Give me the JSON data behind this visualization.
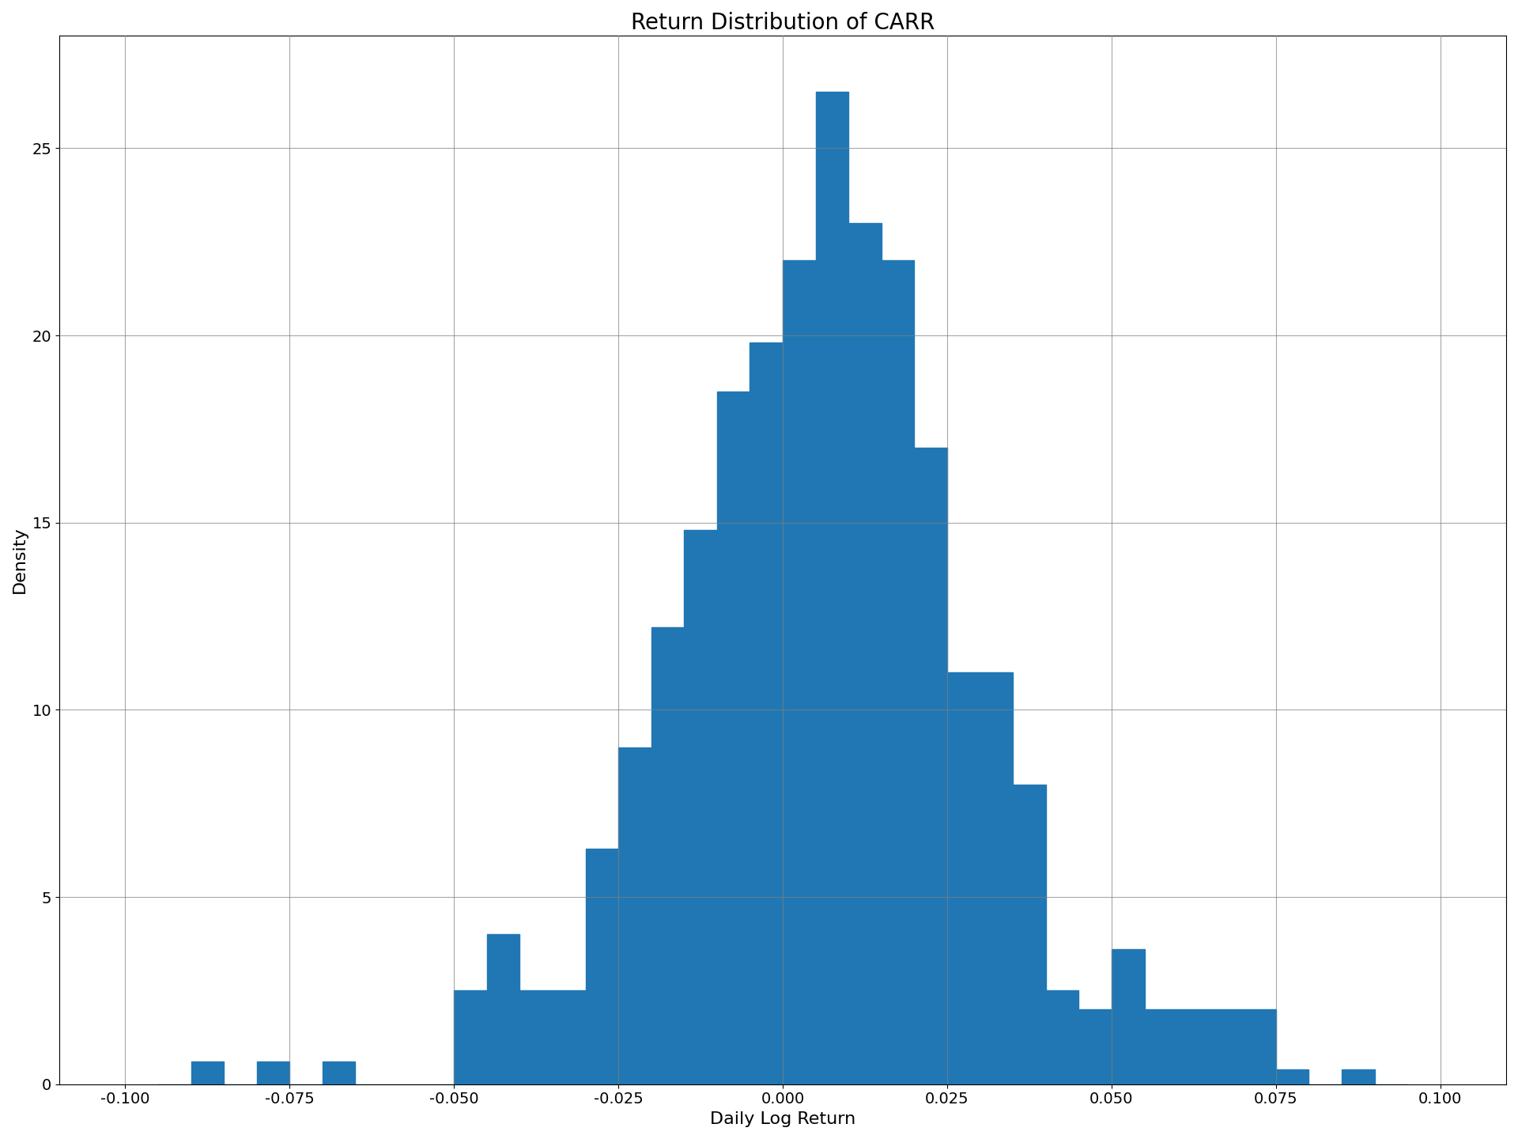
{
  "title": "Return Distribution of CARR",
  "xlabel": "Daily Log Return",
  "ylabel": "Density",
  "bar_color": "#2077b4",
  "xlim": [
    -0.11,
    0.11
  ],
  "ylim": [
    0,
    28
  ],
  "xticks": [
    -0.1,
    -0.075,
    -0.05,
    -0.025,
    0.0,
    0.025,
    0.05,
    0.075,
    0.1
  ],
  "yticks": [
    0,
    5,
    10,
    15,
    20,
    25
  ],
  "title_fontsize": 20,
  "label_fontsize": 16,
  "tick_fontsize": 14,
  "bin_width": 0.005,
  "bin_centers": [
    -0.0925,
    -0.0875,
    -0.0825,
    -0.0775,
    -0.0725,
    -0.0675,
    -0.0625,
    -0.0575,
    -0.0525,
    -0.0475,
    -0.0425,
    -0.0375,
    -0.0325,
    -0.0275,
    -0.0225,
    -0.0175,
    -0.0125,
    -0.0075,
    -0.0025,
    0.0025,
    0.0075,
    0.0125,
    0.0175,
    0.0225,
    0.0275,
    0.0325,
    0.0375,
    0.0425,
    0.0475,
    0.0525,
    0.0575,
    0.0625,
    0.0675,
    0.0725,
    0.0775,
    0.0825,
    0.0875,
    0.0925
  ],
  "bin_heights": [
    0.0,
    0.6,
    0.0,
    0.6,
    0.0,
    0.6,
    0.0,
    0.0,
    0.0,
    2.5,
    4.0,
    2.5,
    2.5,
    6.3,
    9.0,
    12.2,
    14.8,
    18.5,
    19.8,
    22.0,
    26.5,
    23.0,
    22.0,
    17.0,
    11.0,
    11.0,
    8.0,
    2.5,
    2.0,
    3.6,
    2.0,
    2.0,
    2.0,
    2.0,
    0.4,
    0.0,
    0.4,
    0.0
  ],
  "figsize": [
    19.2,
    14.4
  ],
  "dpi": 100
}
